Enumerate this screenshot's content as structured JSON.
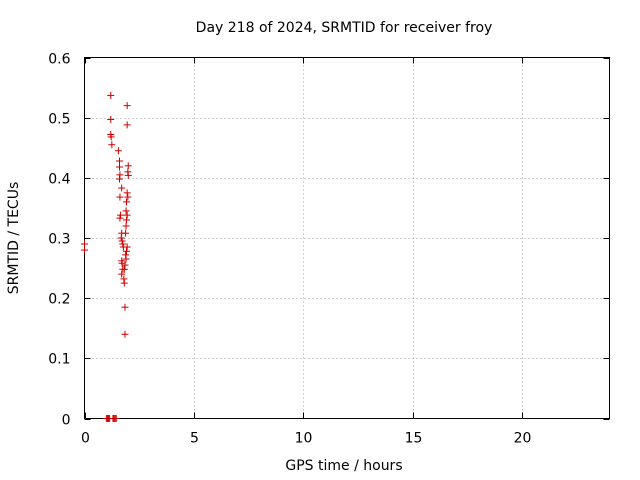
{
  "chart_data": {
    "type": "scatter",
    "title": "Day 218 of 2024, SRMTID for receiver froy",
    "xlabel": "GPS time / hours",
    "ylabel": "SRMTID / TECUs",
    "xlim": [
      0,
      24
    ],
    "ylim": [
      0,
      0.6
    ],
    "x_ticks": [
      0,
      5,
      10,
      15,
      20
    ],
    "y_ticks": [
      0,
      0.1,
      0.2,
      0.3,
      0.4,
      0.5,
      0.6
    ],
    "x_tick_labels": [
      "0",
      "5",
      "10",
      "15",
      "20"
    ],
    "y_tick_labels": [
      "0",
      "0.1",
      "0.2",
      "0.3",
      "0.4",
      "0.5",
      "0.6"
    ],
    "grid": true,
    "marker": "+",
    "marker_color": "#cc0000",
    "series": [
      {
        "name": "SRMTID",
        "points": [
          [
            0.0,
            0.29
          ],
          [
            0.0,
            0.28
          ],
          [
            1.0,
            0.0
          ],
          [
            1.05,
            0.0
          ],
          [
            1.1,
            0.0
          ],
          [
            1.15,
            0.0
          ],
          [
            1.3,
            0.0
          ],
          [
            1.35,
            0.0
          ],
          [
            1.4,
            0.0
          ],
          [
            1.45,
            0.0
          ],
          [
            1.2,
            0.537
          ],
          [
            1.2,
            0.497
          ],
          [
            1.2,
            0.472
          ],
          [
            1.22,
            0.468
          ],
          [
            1.25,
            0.455
          ],
          [
            1.55,
            0.445
          ],
          [
            1.6,
            0.428
          ],
          [
            1.6,
            0.418
          ],
          [
            1.62,
            0.405
          ],
          [
            1.6,
            0.398
          ],
          [
            1.7,
            0.383
          ],
          [
            1.62,
            0.368
          ],
          [
            1.65,
            0.338
          ],
          [
            1.62,
            0.333
          ],
          [
            1.7,
            0.308
          ],
          [
            1.68,
            0.3
          ],
          [
            1.72,
            0.295
          ],
          [
            1.75,
            0.29
          ],
          [
            1.78,
            0.285
          ],
          [
            1.7,
            0.262
          ],
          [
            1.72,
            0.258
          ],
          [
            1.75,
            0.248
          ],
          [
            1.7,
            0.24
          ],
          [
            1.8,
            0.232
          ],
          [
            1.82,
            0.225
          ],
          [
            1.85,
            0.185
          ],
          [
            1.85,
            0.14
          ],
          [
            1.95,
            0.52
          ],
          [
            1.95,
            0.488
          ],
          [
            2.0,
            0.42
          ],
          [
            1.98,
            0.41
          ],
          [
            2.0,
            0.404
          ],
          [
            1.95,
            0.375
          ],
          [
            1.98,
            0.368
          ],
          [
            1.92,
            0.36
          ],
          [
            1.9,
            0.345
          ],
          [
            1.95,
            0.338
          ],
          [
            1.92,
            0.33
          ],
          [
            1.9,
            0.32
          ],
          [
            1.88,
            0.308
          ],
          [
            1.95,
            0.285
          ],
          [
            1.92,
            0.278
          ],
          [
            1.88,
            0.272
          ],
          [
            1.9,
            0.265
          ],
          [
            1.85,
            0.255
          ],
          [
            1.82,
            0.248
          ]
        ]
      }
    ]
  }
}
